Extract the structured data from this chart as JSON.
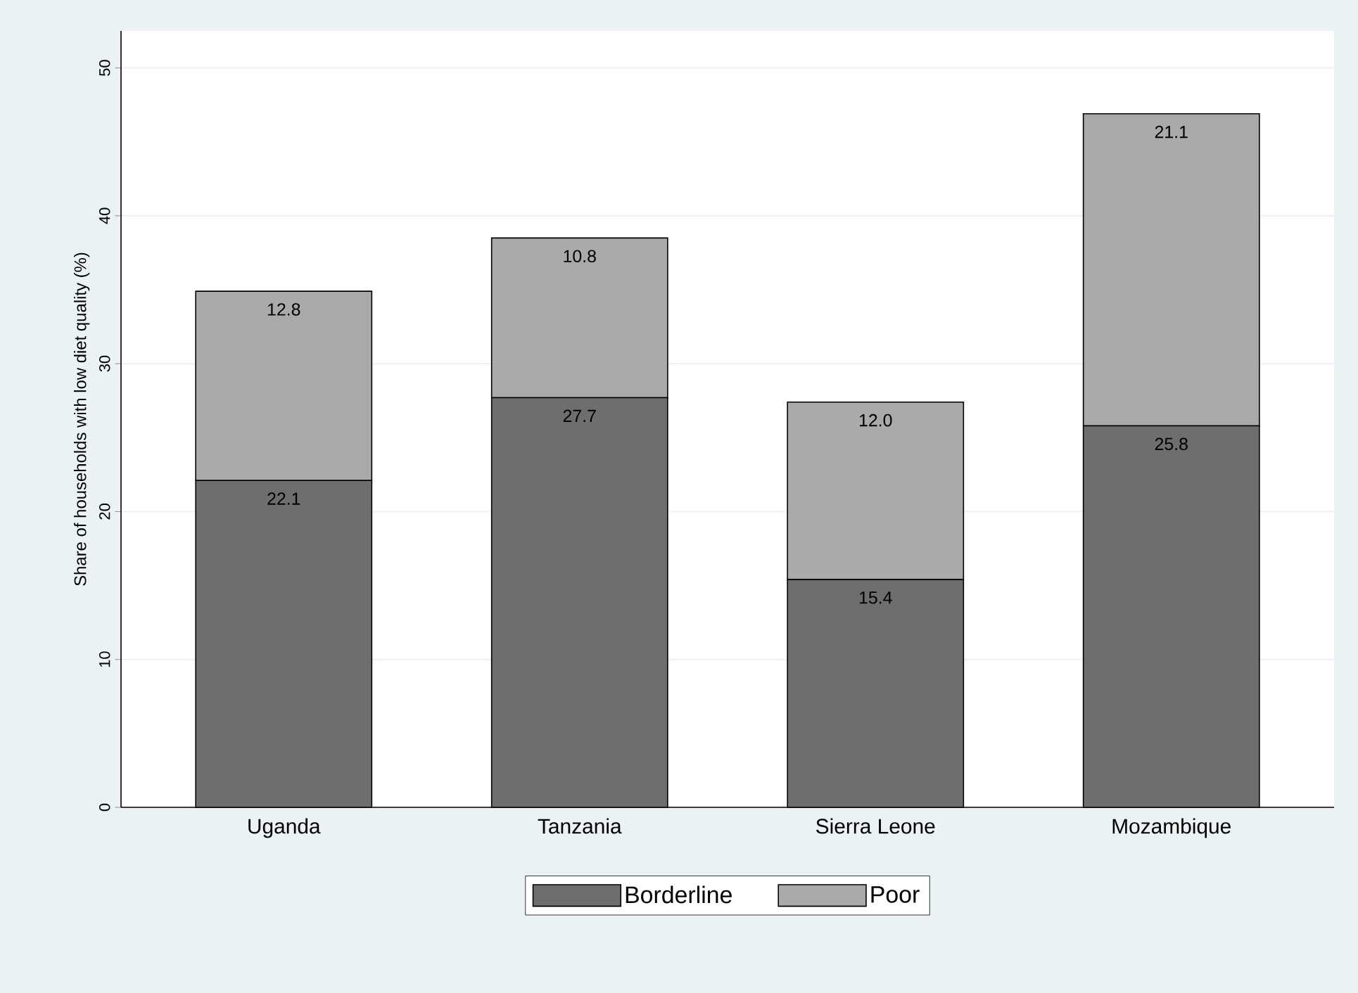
{
  "chart_data": {
    "type": "bar",
    "stacked": true,
    "ylabel": "Share of households with low diet quality (%)",
    "categories": [
      "Uganda",
      "Tanzania",
      "Sierra Leone",
      "Mozambique"
    ],
    "series": [
      {
        "name": "Borderline",
        "color": "#6e6e6e",
        "values": [
          22.1,
          27.7,
          15.4,
          25.8
        ],
        "value_labels": [
          "22.1",
          "27.7",
          "15.4",
          "25.8"
        ]
      },
      {
        "name": "Poor",
        "color": "#aaaaaa",
        "values": [
          12.8,
          10.8,
          12.0,
          21.1
        ],
        "value_labels": [
          "12.8",
          "10.8",
          "12.0",
          "21.1"
        ]
      }
    ],
    "ylim": [
      0,
      52.5
    ],
    "yticks": [
      0,
      10,
      20,
      30,
      40,
      50
    ],
    "grid": "y",
    "legend": "bottom"
  }
}
